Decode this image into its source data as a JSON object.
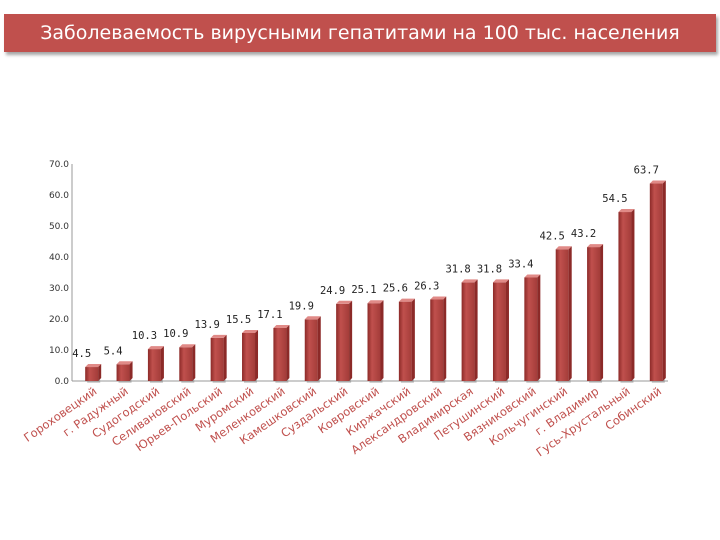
{
  "title": "Заболеваемость вирусными гепатитами на 100 тыс. населения",
  "colors": {
    "bar": "#c0504d",
    "bar_dark": "#8c2a28",
    "bar_light": "#e08a87",
    "label": "#c0504d"
  },
  "chart_data": {
    "type": "bar",
    "title": "Заболеваемость вирусными гепатитами на 100 тыс. населения",
    "ylim": [
      0,
      70
    ],
    "y_ticks": [
      "0.0",
      "10.0",
      "20.0",
      "30.0",
      "40.0",
      "50.0",
      "60.0",
      "70.0"
    ],
    "grid": false,
    "categories": [
      "Гороховецкий",
      "г. Радужный",
      "Судогодский",
      "Селивановский",
      "Юрьев-Польский",
      "Муромский",
      "Меленковский",
      "Камешковский",
      "Суздальский",
      "Ковровский",
      "Киржачский",
      "Александровский",
      "Владимирская",
      "Петушинский",
      "Вязниковский",
      "Кольчугинский",
      "г. Владимир",
      "Гусь-Хрустальный",
      "Собинский"
    ],
    "values": [
      4.5,
      5.4,
      10.3,
      10.9,
      13.9,
      15.5,
      17.1,
      19.9,
      24.9,
      25.1,
      25.6,
      26.3,
      31.8,
      31.8,
      33.4,
      42.5,
      43.2,
      54.5,
      63.7
    ],
    "value_labels": [
      "4.5",
      "5.4",
      "10.3",
      "10.9",
      "13.9",
      "15.5",
      "17.1",
      "19.9",
      "24.9",
      "25.1",
      "25.6",
      "26.3",
      "31.8",
      "31.8",
      "33.4",
      "42.5",
      "43.2",
      "54.5",
      "63.7"
    ]
  }
}
